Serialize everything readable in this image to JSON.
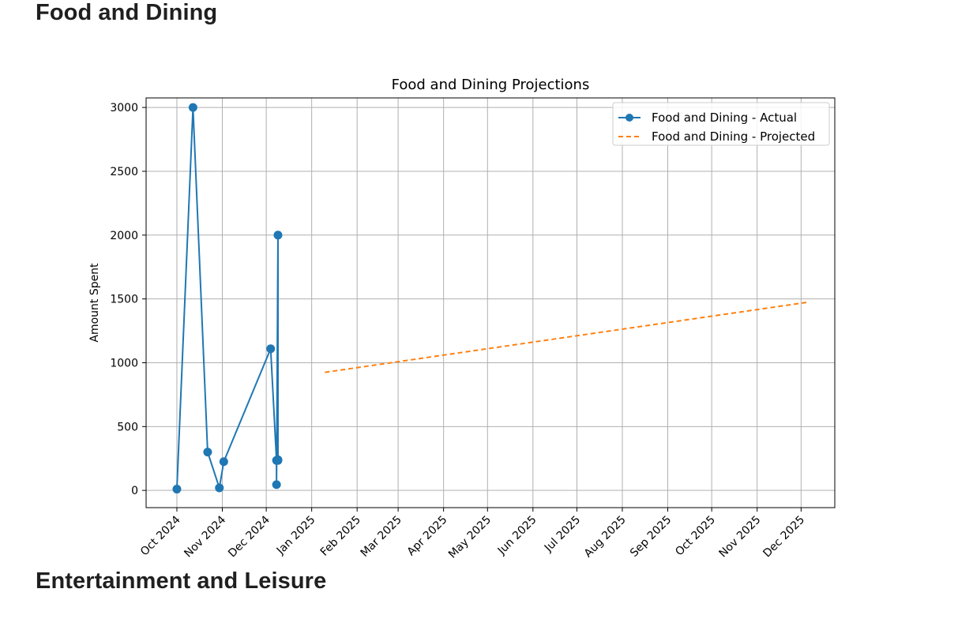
{
  "sections": [
    {
      "heading": "Food and Dining"
    },
    {
      "heading": "Entertainment and Leisure"
    }
  ],
  "chart_data": {
    "type": "line",
    "title": "Food and Dining Projections",
    "xlabel": "",
    "ylabel": "Amount Spent",
    "ylim": [
      -135,
      3075
    ],
    "xlim": [
      "2024-09-10",
      "2025-12-24"
    ],
    "grid": true,
    "legend_position": "upper right",
    "x_tick_labels": [
      "Oct 2024",
      "Nov 2024",
      "Dec 2024",
      "Jan 2025",
      "Feb 2025",
      "Mar 2025",
      "Apr 2025",
      "May 2025",
      "Jun 2025",
      "Jul 2025",
      "Aug 2025",
      "Sep 2025",
      "Oct 2025",
      "Nov 2025",
      "Dec 2025"
    ],
    "x_tick_dates": [
      "2024-10-01",
      "2024-11-01",
      "2024-12-01",
      "2025-01-01",
      "2025-02-01",
      "2025-03-01",
      "2025-04-01",
      "2025-05-01",
      "2025-06-01",
      "2025-07-01",
      "2025-08-01",
      "2025-09-01",
      "2025-10-01",
      "2025-11-01",
      "2025-12-01"
    ],
    "y_ticks": [
      0,
      500,
      1000,
      1500,
      2000,
      2500,
      3000
    ],
    "series": [
      {
        "name": "Food and Dining - Actual",
        "style": "solid-marker",
        "color": "#1f77b4",
        "points": [
          {
            "x": "2024-10-01",
            "y": 10
          },
          {
            "x": "2024-10-12",
            "y": 3000
          },
          {
            "x": "2024-10-22",
            "y": 300
          },
          {
            "x": "2024-10-30",
            "y": 20
          },
          {
            "x": "2024-11-02",
            "y": 225
          },
          {
            "x": "2024-12-04",
            "y": 1110
          },
          {
            "x": "2024-12-08",
            "y": 235
          },
          {
            "x": "2024-12-08",
            "y": 45
          },
          {
            "x": "2024-12-09",
            "y": 2000
          },
          {
            "x": "2024-12-09",
            "y": 240
          },
          {
            "x": "2024-12-09",
            "y": 235
          }
        ]
      },
      {
        "name": "Food and Dining - Projected",
        "style": "dashed",
        "color": "#ff7f0e",
        "points": [
          {
            "x": "2025-01-10",
            "y": 925
          },
          {
            "x": "2025-12-06",
            "y": 1475
          }
        ]
      }
    ]
  }
}
